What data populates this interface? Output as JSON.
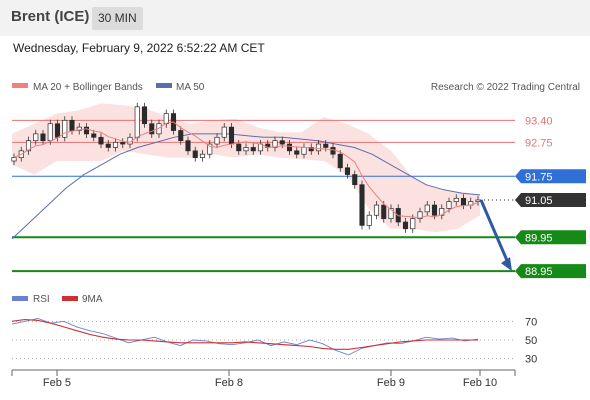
{
  "header": {
    "instrument": "Brent (ICE)",
    "timeframe": "30 MIN"
  },
  "datetime": "Wednesday, February 9, 2022 6:52:22 AM CET",
  "legend": {
    "ma20_label": "MA 20 + Bollinger Bands",
    "ma50_label": "MA 50",
    "credit": "Research © 2022 Trading Central",
    "rsi_label": "RSI",
    "rsi_ma_label": "9MA"
  },
  "colors": {
    "ma20": "#f08080",
    "ma50": "#5a6fb0",
    "bollinger": "#fbdcdc",
    "resistance": "#e57373",
    "pivot": "#2f6fd6",
    "support": "#168a16",
    "current": "#333333",
    "arrow": "#2d5aa0",
    "rsi": "#6b7fd6",
    "rsi_ma": "#d03030"
  },
  "chart_data": [
    {
      "type": "candlestick",
      "title": "",
      "ylim": [
        88.6,
        94.0
      ],
      "x_labels": [
        "Feb 5",
        "Feb 8",
        "Feb 9",
        "Feb 10"
      ],
      "levels": [
        {
          "label": "93.40",
          "value": 93.4,
          "kind": "resistance"
        },
        {
          "label": "92.75",
          "value": 92.75,
          "kind": "resistance"
        },
        {
          "label": "91.75",
          "value": 91.75,
          "kind": "pivot"
        },
        {
          "label": "91.05",
          "value": 91.05,
          "kind": "current"
        },
        {
          "label": "89.95",
          "value": 89.95,
          "kind": "support"
        },
        {
          "label": "88.95",
          "value": 88.95,
          "kind": "support"
        }
      ],
      "close_series": [
        92.3,
        92.5,
        92.8,
        93.0,
        92.8,
        93.3,
        92.9,
        93.4,
        93.1,
        93.2,
        93.0,
        92.9,
        92.7,
        92.6,
        92.75,
        92.7,
        92.9,
        93.8,
        93.3,
        93.0,
        93.3,
        93.6,
        93.1,
        92.8,
        92.5,
        92.3,
        92.4,
        92.7,
        92.9,
        93.2,
        92.7,
        92.5,
        92.6,
        92.5,
        92.7,
        92.6,
        92.8,
        92.7,
        92.5,
        92.4,
        92.6,
        92.5,
        92.7,
        92.6,
        92.4,
        92.0,
        91.8,
        91.5,
        90.3,
        90.6,
        90.9,
        90.5,
        90.8,
        90.4,
        90.2,
        90.5,
        90.7,
        90.9,
        90.6,
        90.8,
        91.0,
        91.1,
        90.9,
        91.0,
        91.05
      ],
      "ma50_series": [
        89.9,
        90.4,
        90.9,
        91.4,
        91.8,
        92.1,
        92.4,
        92.6,
        92.75,
        92.9,
        93.0,
        93.0,
        93.0,
        92.95,
        92.9,
        92.9,
        92.85,
        92.8,
        92.7,
        92.6,
        92.4,
        92.1,
        91.8,
        91.5,
        91.35,
        91.25,
        91.2
      ],
      "bb_upper": [
        93.0,
        93.3,
        93.6,
        93.7,
        93.9,
        93.85,
        93.75,
        93.5,
        93.3,
        93.4,
        93.45,
        93.2,
        93.05,
        93.05,
        93.5,
        93.3,
        93.0,
        92.5,
        91.7,
        91.4,
        91.3,
        91.2
      ],
      "bb_lower": [
        92.1,
        91.8,
        92.2,
        92.2,
        92.2,
        92.5,
        92.4,
        92.3,
        92.3,
        92.4,
        92.3,
        92.4,
        92.3,
        92.25,
        92.2,
        91.8,
        90.8,
        90.2,
        90.2,
        90.1,
        90.2,
        90.6
      ],
      "forecast": {
        "from": 91.05,
        "to": 88.95
      }
    },
    {
      "type": "line",
      "title": "",
      "ylim": [
        20,
        80
      ],
      "ticks": [
        "70",
        "50",
        "30"
      ],
      "tick_values": [
        70,
        50,
        30
      ],
      "series": [
        {
          "name": "RSI",
          "values": [
            67,
            70,
            73,
            68,
            70,
            64,
            60,
            57,
            52,
            47,
            50,
            53,
            48,
            44,
            50,
            49,
            46,
            45,
            47,
            50,
            44,
            48,
            45,
            50,
            46,
            39,
            34,
            41,
            44,
            47,
            46,
            49,
            53,
            51,
            52,
            49,
            51
          ]
        },
        {
          "name": "9MA",
          "values": [
            70,
            72,
            71,
            68,
            64,
            60,
            56,
            53,
            51,
            50,
            50,
            49,
            48,
            47,
            47,
            47,
            47,
            47,
            48,
            47,
            46,
            45,
            44,
            43,
            41,
            40,
            40,
            42,
            44,
            46,
            48,
            49,
            50,
            50,
            50,
            50,
            50
          ]
        }
      ]
    }
  ]
}
